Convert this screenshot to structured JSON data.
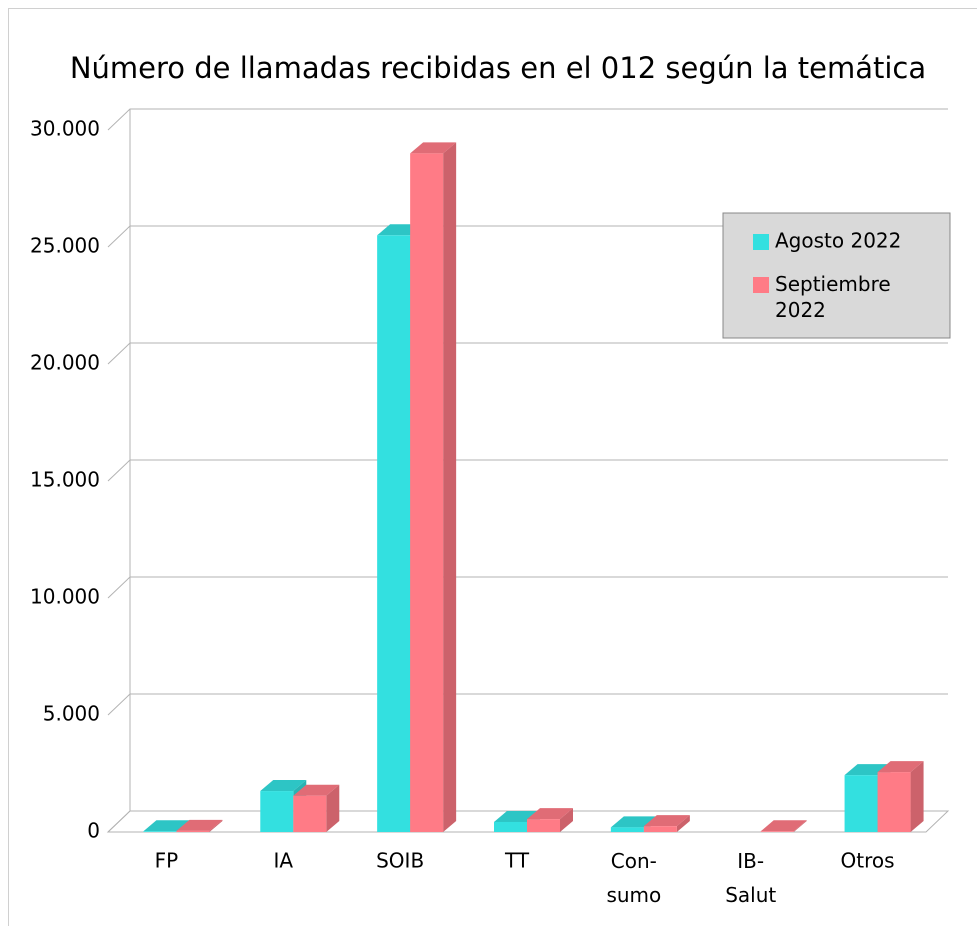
{
  "chart_data": {
    "type": "bar3d",
    "title": "Número de llamadas recibidas en el 012 según la temática",
    "categories": [
      "FP",
      "IA",
      "SOIB",
      "TT",
      "Con-sumo",
      "IB-Salut",
      "Otros"
    ],
    "series": [
      {
        "name": "Agosto 2022",
        "color": "#33e0e0",
        "values": [
          30,
          1750,
          25500,
          430,
          200,
          0,
          2430
        ]
      },
      {
        "name": "Septiembre 2022",
        "color": "#ff7b86",
        "values": [
          50,
          1550,
          29000,
          550,
          250,
          30,
          2560
        ]
      }
    ],
    "ylim": [
      0,
      30000
    ],
    "yticks": [
      0,
      {
        "value": 5000,
        "label": "5.000"
      },
      {
        "value": 10000,
        "label": "10.000"
      },
      {
        "value": 15000,
        "label": "15.000"
      },
      {
        "value": 20000,
        "label": "20.000"
      },
      {
        "value": 25000,
        "label": "25.000"
      },
      {
        "value": 30000,
        "label": "30.000"
      }
    ],
    "grid": true,
    "legend": "upper right"
  }
}
